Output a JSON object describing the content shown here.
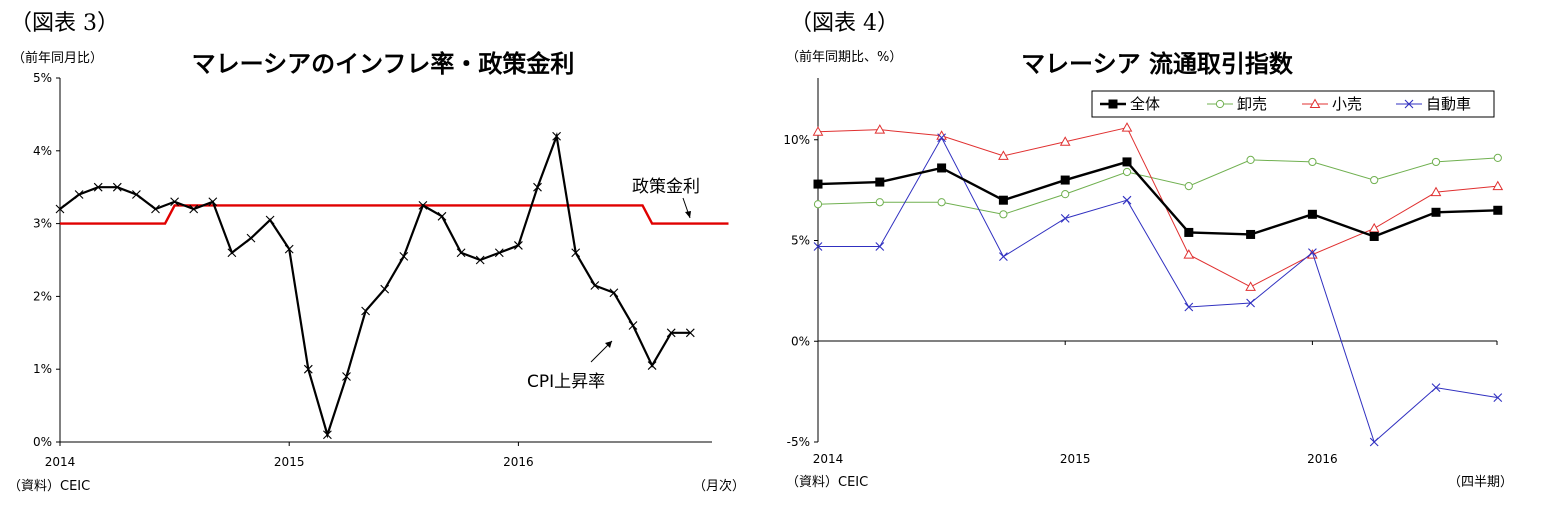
{
  "chart_data": [
    {
      "type": "line",
      "figure_label": "（図表 3）",
      "title": "マレーシアのインフレ率・政策金利",
      "unit_label": "（前年同月比）",
      "source": "（資料）CEIC",
      "xlabel": "（月次）",
      "ylim": [
        0,
        5
      ],
      "y_ticks": [
        "0%",
        "1%",
        "2%",
        "3%",
        "4%",
        "5%"
      ],
      "x_ticks": [
        "2014",
        "2015",
        "2016"
      ],
      "grid": false,
      "series": [
        {
          "name": "CPI上昇率",
          "color": "#000000",
          "marker": "x",
          "values": [
            3.2,
            3.4,
            3.5,
            3.5,
            3.4,
            3.2,
            3.3,
            3.2,
            3.3,
            2.6,
            2.8,
            3.05,
            2.65,
            1.0,
            0.1,
            0.9,
            1.8,
            2.1,
            2.55,
            3.25,
            3.1,
            2.6,
            2.5,
            2.6,
            2.7,
            3.5,
            4.2,
            2.6,
            2.15,
            2.05,
            1.6,
            1.05,
            1.5,
            1.5
          ]
        },
        {
          "name": "政策金利",
          "color": "#e00000",
          "marker": "none",
          "values": [
            3.0,
            3.0,
            3.0,
            3.0,
            3.0,
            3.0,
            3.25,
            3.25,
            3.25,
            3.25,
            3.25,
            3.25,
            3.25,
            3.25,
            3.25,
            3.25,
            3.25,
            3.25,
            3.25,
            3.25,
            3.25,
            3.25,
            3.25,
            3.25,
            3.25,
            3.25,
            3.25,
            3.25,
            3.25,
            3.25,
            3.25,
            3.0,
            3.0,
            3.0,
            3.0,
            3.0
          ]
        }
      ],
      "annotations": [
        "政策金利",
        "CPI上昇率"
      ]
    },
    {
      "type": "line",
      "figure_label": "（図表 4）",
      "title": "マレーシア 流通取引指数",
      "unit_label": "（前年同期比、%）",
      "source": "（資料）CEIC",
      "xlabel": "（四半期）",
      "ylim": [
        -5,
        13
      ],
      "y_ticks": [
        "-5%",
        "0%",
        "5%",
        "10%"
      ],
      "x_ticks": [
        "2014",
        "2015",
        "2016"
      ],
      "grid": false,
      "legend_position": "top-right",
      "series": [
        {
          "name": "全体",
          "color": "#000000",
          "marker": "square",
          "values": [
            7.8,
            7.9,
            8.6,
            7.0,
            8.0,
            8.9,
            5.4,
            5.3,
            6.3,
            5.2,
            6.4,
            6.5
          ]
        },
        {
          "name": "卸売",
          "color": "#70b050",
          "marker": "circle",
          "values": [
            6.8,
            6.9,
            6.9,
            6.3,
            7.3,
            8.4,
            7.7,
            9.0,
            8.9,
            8.0,
            8.9,
            9.1
          ]
        },
        {
          "name": "小売",
          "color": "#e03030",
          "marker": "triangle",
          "values": [
            10.4,
            10.5,
            10.2,
            9.2,
            9.9,
            10.6,
            4.3,
            2.7,
            4.3,
            5.6,
            7.4,
            7.7
          ]
        },
        {
          "name": "自動車",
          "color": "#3030c0",
          "marker": "x",
          "values": [
            4.7,
            4.7,
            10.1,
            4.2,
            6.1,
            7.0,
            1.7,
            1.9,
            4.4,
            -5.0,
            -2.3,
            -2.8
          ]
        }
      ]
    }
  ]
}
